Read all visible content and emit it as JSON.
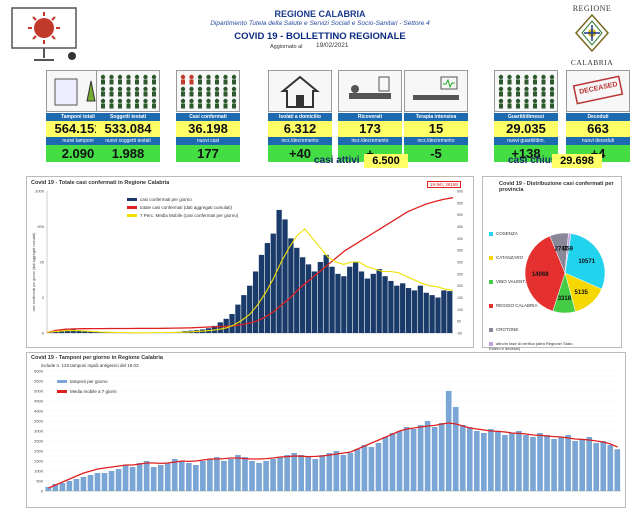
{
  "header": {
    "region": "REGIONE CALABRIA",
    "department": "Dipartimento Tutela della Salute e Servizi Sociali e Socio-Sanitari - Settore 4",
    "title": "COVID 19 - BOLLETTINO REGIONALE",
    "updated_label": "Aggiornato al",
    "date": "19/02/2021",
    "logo_text_top": "REGIONE",
    "logo_text_bottom": "CALABRIA"
  },
  "cards": [
    {
      "label": "Tamponi totali",
      "value": "564.151",
      "sub": "nuovi tamponi",
      "delta": "2.090",
      "icon": "lab-test-icon"
    },
    {
      "label": "Soggetti testati",
      "value": "533.084",
      "sub": "nuovi soggetti testati",
      "delta": "1.988",
      "icon": "people-grid-icon"
    },
    {
      "label": "Casi confermati",
      "value": "36.198",
      "sub": "nuovi casi",
      "delta": "177",
      "icon": "confirmed-cases-icon"
    },
    {
      "label": "Isolati a domicilio",
      "value": "6.312",
      "sub": "incr./decremento",
      "delta": "+40",
      "icon": "house-icon"
    },
    {
      "label": "Ricoverati",
      "value": "173",
      "sub": "incr./decremento",
      "delta": "+",
      "icon": "hospital-bed-icon"
    },
    {
      "label": "Terapia intensiva",
      "value": "15",
      "sub": "incr./decremento",
      "delta": "-5",
      "icon": "intensive-care-icon"
    },
    {
      "label": "Guariti/dimessi",
      "value": "29.035",
      "sub": "nuovi guariti/dim.",
      "delta": "+138",
      "icon": "recovered-icon"
    },
    {
      "label": "Deceduti",
      "value": "663",
      "sub": "nuovi deceduti",
      "delta": "+4",
      "icon": "deceased-stamp-icon",
      "stamp": "DECEASED"
    }
  ],
  "summary": {
    "active_label": "casi attivi",
    "active_value": "6.500",
    "closed_label": "casi chiusi",
    "closed_value": "29.698"
  },
  "colors": {
    "blue": "#1e6ab0",
    "yellow": "#ffff66",
    "green": "#44dd44",
    "navy": "#1a3a8a",
    "red": "#e02020"
  },
  "chart_data": [
    {
      "type": "bar",
      "title": "Covid 19 - Totale casi confermati in Regione Calabria",
      "annotation": "19-feb; 36198",
      "legend": [
        "casi confermati per giorno",
        "totale casi confermati (dati aggregati cumulati)",
        "7 Perc. Media Mobile (casi confermati per giorno)"
      ],
      "ylabel_left": "casi confermati per giorno (dati aggregati cumulati)",
      "yticks_left": [
        "0",
        "2",
        "20",
        "200",
        "2000"
      ],
      "yticks_right": [
        "-50",
        "50",
        "100",
        "150",
        "200",
        "250",
        "300",
        "350",
        "400",
        "450",
        "500",
        "550",
        "600"
      ],
      "series": [
        {
          "name": "casi confermati per giorno",
          "values": [
            2,
            5,
            8,
            12,
            15,
            10,
            8,
            6,
            4,
            3,
            2,
            2,
            1,
            1,
            1,
            2,
            2,
            1,
            1,
            2,
            3,
            4,
            5,
            8,
            10,
            12,
            15,
            20,
            30,
            45,
            60,
            80,
            120,
            160,
            200,
            260,
            330,
            380,
            420,
            520,
            480,
            400,
            360,
            320,
            290,
            260,
            300,
            330,
            280,
            250,
            240,
            280,
            300,
            260,
            230,
            250,
            270,
            240,
            220,
            200,
            210,
            190,
            180,
            200,
            170,
            160,
            150,
            180,
            177
          ]
        },
        {
          "name": "totale casi confermati (dati aggregati cumulati)",
          "values": [
            100,
            700,
            1000,
            1100,
            1150,
            1170,
            1190,
            1200,
            1210,
            1215,
            1220,
            1230,
            1240,
            1260,
            1300,
            1350,
            1400,
            1500,
            1600,
            1700,
            1800,
            2000,
            2400,
            3000,
            4000,
            5500,
            7500,
            9500,
            12000,
            14000,
            16000,
            18000,
            20000,
            22000,
            23500,
            25000,
            26500,
            28000,
            29500,
            31000,
            32500,
            33500,
            34500,
            35200,
            35800,
            36198
          ]
        },
        {
          "name": "7 Perc. Media Mobile (casi confermati per giorno)",
          "values": [
            3,
            6,
            9,
            11,
            10,
            8,
            6,
            4,
            3,
            2,
            2,
            1,
            1,
            1,
            2,
            2,
            2,
            3,
            4,
            6,
            8,
            11,
            15,
            22,
            35,
            55,
            80,
            120,
            170,
            230,
            300,
            360,
            410,
            440,
            400,
            360,
            320,
            300,
            290,
            300,
            300,
            280,
            270,
            260,
            260,
            255,
            240,
            225,
            210,
            200,
            195,
            185,
            180
          ]
        }
      ]
    },
    {
      "type": "pie",
      "title": "Covid 19 - Distribuzione casi confermati per provincia",
      "categories": [
        "COSENZA",
        "CATANZARO",
        "VIBO VALENTIA",
        "REGGIO CALABRIA",
        "CROTONE",
        "altro/in fase di verifica (altra Regione/ Stato Estero e decessi)"
      ],
      "values": [
        10571,
        5135,
        3318,
        14068,
        2747,
        359
      ],
      "colors": [
        "#22d3ee",
        "#f5d800",
        "#44cc44",
        "#e53030",
        "#888899",
        "#c0a0e0"
      ]
    },
    {
      "type": "bar",
      "title": "Covid 19 - Tamponi per giorno in Regione Calabria",
      "subtitle": "include n. 133 tamponi rapidi antigenici del 19.02",
      "legend": [
        "tamponi per giorno",
        "Media mobile a 7 giorni"
      ],
      "yticks": [
        "0",
        "500",
        "1000",
        "1500",
        "2000",
        "2500",
        "3000",
        "3500",
        "4000",
        "4500",
        "5000",
        "5500",
        "6000"
      ],
      "ylim": [
        0,
        6000
      ],
      "series": [
        {
          "name": "tamponi per giorno",
          "values": [
            200,
            350,
            400,
            500,
            600,
            700,
            800,
            900,
            900,
            1000,
            1100,
            1300,
            1200,
            1400,
            1500,
            1200,
            1300,
            1400,
            1600,
            1500,
            1400,
            1300,
            1500,
            1600,
            1700,
            1500,
            1600,
            1800,
            1700,
            1500,
            1400,
            1500,
            1600,
            1700,
            1800,
            1900,
            1800,
            1700,
            1600,
            1800,
            1900,
            2000,
            1800,
            1900,
            2100,
            2300,
            2200,
            2400,
            2700,
            2900,
            3000,
            3200,
            3100,
            3300,
            3500,
            3200,
            3400,
            5000,
            4200,
            3300,
            3200,
            3000,
            2900,
            3100,
            3000,
            2800,
            2900,
            3000,
            2800,
            2700,
            2900,
            2800,
            2600,
            2700,
            2800,
            2500,
            2600,
            2700,
            2400,
            2500,
            2300,
            2090
          ]
        },
        {
          "name": "Media mobile a 7 giorni",
          "values": [
            150,
            300,
            450,
            600,
            750,
            900,
            1000,
            1100,
            1150,
            1200,
            1250,
            1300,
            1300,
            1350,
            1400,
            1400,
            1380,
            1400,
            1450,
            1500,
            1480,
            1500,
            1550,
            1600,
            1600,
            1620,
            1650,
            1650,
            1620,
            1600,
            1600,
            1620,
            1650,
            1700,
            1720,
            1750,
            1740,
            1720,
            1730,
            1750,
            1800,
            1850,
            1900,
            1950,
            2100,
            2250,
            2400,
            2550,
            2700,
            2850,
            3000,
            3100,
            3150,
            3200,
            3250,
            3280,
            3350,
            3400,
            3350,
            3250,
            3150,
            3100,
            3050,
            3000,
            2980,
            2950,
            2900,
            2880,
            2850,
            2800,
            2780,
            2750,
            2720,
            2700,
            2650,
            2600,
            2580,
            2550,
            2500,
            2450,
            2350,
            2200
          ]
        }
      ]
    }
  ]
}
